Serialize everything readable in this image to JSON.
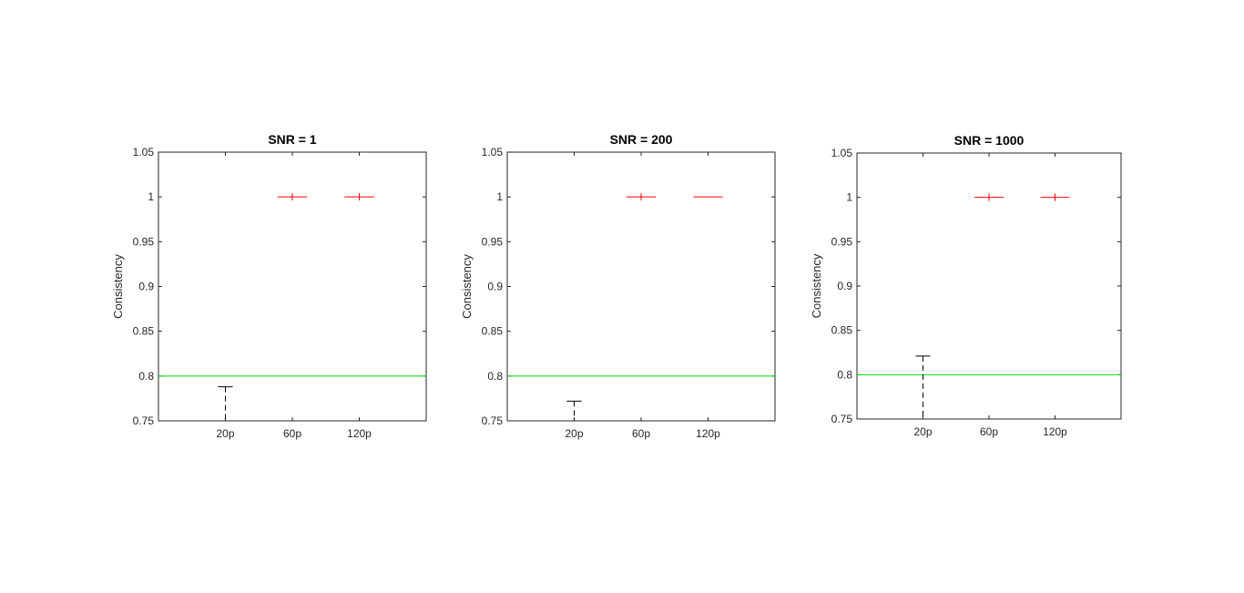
{
  "chart_data": [
    {
      "type": "box",
      "title": "SNR = 1",
      "ylabel": "Consistency",
      "xlabel": "",
      "categories": [
        "20p",
        "60p",
        "120p"
      ],
      "ylim": [
        0.75,
        1.05
      ],
      "yticks": [
        "0.75",
        "0.8",
        "0.85",
        "0.9",
        "0.95",
        "1",
        "1.05"
      ],
      "threshold": 0.8,
      "boxes": [
        {
          "category": "20p",
          "upper_whisker": 0.788,
          "lower_whisker": 0.75,
          "median": null,
          "outlier": null
        },
        {
          "category": "60p",
          "upper_whisker": 1.0,
          "lower_whisker": 1.0,
          "median": 1.0,
          "outlier": 1.0
        },
        {
          "category": "120p",
          "upper_whisker": 1.0,
          "lower_whisker": 1.0,
          "median": 1.0,
          "outlier": 1.0
        }
      ]
    },
    {
      "type": "box",
      "title": "SNR = 200",
      "ylabel": "Consistency",
      "xlabel": "",
      "categories": [
        "20p",
        "60p",
        "120p"
      ],
      "ylim": [
        0.75,
        1.05
      ],
      "yticks": [
        "0.75",
        "0.8",
        "0.85",
        "0.9",
        "0.95",
        "1",
        "1.05"
      ],
      "threshold": 0.8,
      "boxes": [
        {
          "category": "20p",
          "upper_whisker": 0.772,
          "lower_whisker": 0.75,
          "median": null,
          "outlier": null
        },
        {
          "category": "60p",
          "upper_whisker": 1.0,
          "lower_whisker": 1.0,
          "median": 1.0,
          "outlier": 1.0
        },
        {
          "category": "120p",
          "upper_whisker": 1.0,
          "lower_whisker": 1.0,
          "median": 1.0,
          "outlier": null
        }
      ]
    },
    {
      "type": "box",
      "title": "SNR = 1000",
      "ylabel": "Consistency",
      "xlabel": "",
      "categories": [
        "20p",
        "60p",
        "120p"
      ],
      "ylim": [
        0.75,
        1.05
      ],
      "yticks": [
        "0.75",
        "0.8",
        "0.85",
        "0.9",
        "0.95",
        "1",
        "1.05"
      ],
      "threshold": 0.8,
      "boxes": [
        {
          "category": "20p",
          "upper_whisker": 0.821,
          "lower_whisker": 0.75,
          "median": null,
          "outlier": null
        },
        {
          "category": "60p",
          "upper_whisker": 1.0,
          "lower_whisker": 1.0,
          "median": 1.0,
          "outlier": 1.0
        },
        {
          "category": "120p",
          "upper_whisker": 1.0,
          "lower_whisker": 1.0,
          "median": 1.0,
          "outlier": 1.0
        }
      ]
    }
  ],
  "colors": {
    "axes": "#262626",
    "whisker": "#000000",
    "median": "#ff0000",
    "threshold": "#00dd00",
    "text": "#262626"
  }
}
